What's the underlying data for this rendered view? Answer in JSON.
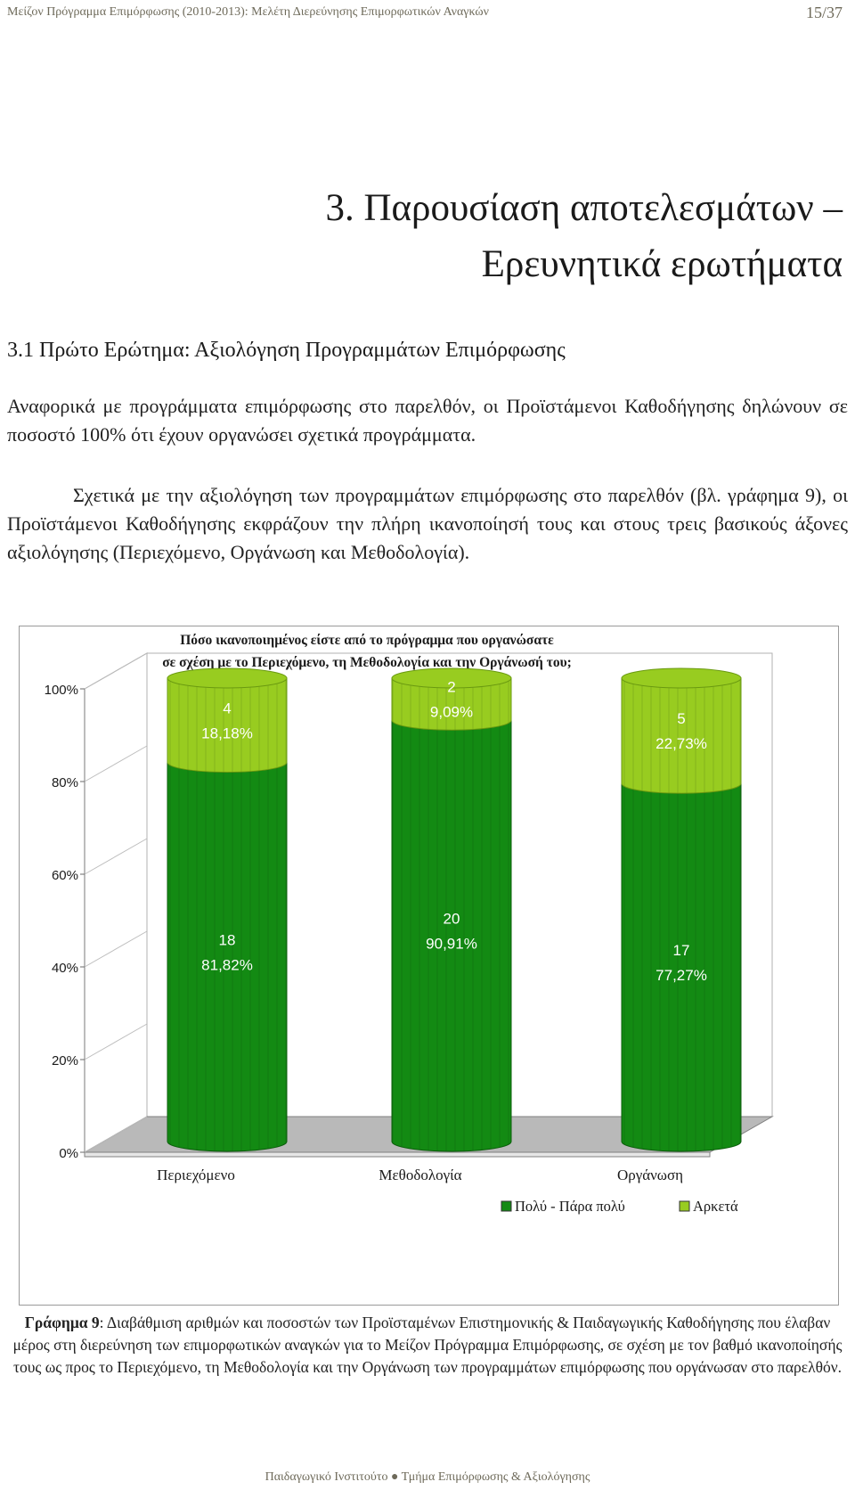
{
  "header": {
    "left": "Μείζον Πρόγραμμα Επιμόρφωσης (2010-2013): Μελέτη Διερεύνησης Επιμορφωτικών Αναγκών",
    "page": "15/37"
  },
  "heading": {
    "line1": "3. Παρουσίαση αποτελεσμάτων –",
    "line2": "Ερευνητικά ερωτήματα"
  },
  "subheading": "3.1 Πρώτο Ερώτημα: Αξιολόγηση Προγραμμάτων Επιμόρφωσης",
  "paragraphs": [
    "Αναφορικά με προγράμματα επιμόρφωσης στο παρελθόν, οι Προϊστάμενοι Καθοδήγησης δηλώνουν σε ποσοστό 100% ότι έχουν οργανώσει σχετικά προγράμματα.",
    "Σχετικά με την αξιολόγηση των προγραμμάτων επιμόρφωσης στο παρελθόν (βλ. γράφημα 9), οι Προϊστάμενοι Καθοδήγησης εκφράζουν την πλήρη ικανοποίησή τους και στους τρεις βασικούς άξονες αξιολόγησης (Περιεχόμενο, Οργάνωση και Μεθοδολογία)."
  ],
  "chart_data": {
    "type": "bar",
    "stacked": true,
    "percent_stacked": true,
    "title": "Πόσο ικανοποιημένος είστε από το πρόγραμμα που οργανώσατε σε σχέση με το Περιεχόμενο, τη Μεθοδολογία και την Οργάνωσή του;",
    "title_lines": [
      "Πόσο ικανοποιημένος είστε από το πρόγραμμα που οργανώσατε",
      "σε σχέση με το Περιεχόμενο, τη Μεθοδολογία και την Οργάνωσή του;"
    ],
    "categories": [
      "Περιεχόμενο",
      "Μεθοδολογία",
      "Οργάνωση"
    ],
    "series": [
      {
        "name": "Πολύ - Πάρα πολύ",
        "counts": [
          18,
          20,
          17
        ],
        "values": [
          81.82,
          90.91,
          77.27
        ],
        "labels": [
          "81,82%",
          "90,91%",
          "77,27%"
        ],
        "color": "#138a13"
      },
      {
        "name": "Αρκετά",
        "counts": [
          4,
          2,
          5
        ],
        "values": [
          18.18,
          9.09,
          22.73
        ],
        "labels": [
          "18,18%",
          "9,09%",
          "22,73%"
        ],
        "color": "#98cc20"
      }
    ],
    "ylim": [
      0,
      100
    ],
    "yticks": [
      "0%",
      "20%",
      "40%",
      "60%",
      "80%",
      "100%"
    ],
    "legend": "bottom-right",
    "grid": false
  },
  "caption": {
    "label": "Γράφημα 9",
    "text": ": Διαβάθμιση αριθμών και ποσοστών των Προϊσταμένων Επιστημονικής & Παιδαγωγικής Καθοδήγησης που έλαβαν μέρος στη διερεύνηση των επιμορφωτικών αναγκών για το Μείζον Πρόγραμμα Επιμόρφωσης, σε σχέση με τον βαθμό ικανοποίησής τους ως προς το Περιεχόμενο, τη Μεθοδολογία και την Οργάνωση των προγραμμάτων επιμόρφωσης που οργάνωσαν στο παρελθόν."
  },
  "footer": "Παιδαγωγικό Ινστιτούτο ● Τμήμα Επιμόρφωσης & Αξιολόγησης"
}
